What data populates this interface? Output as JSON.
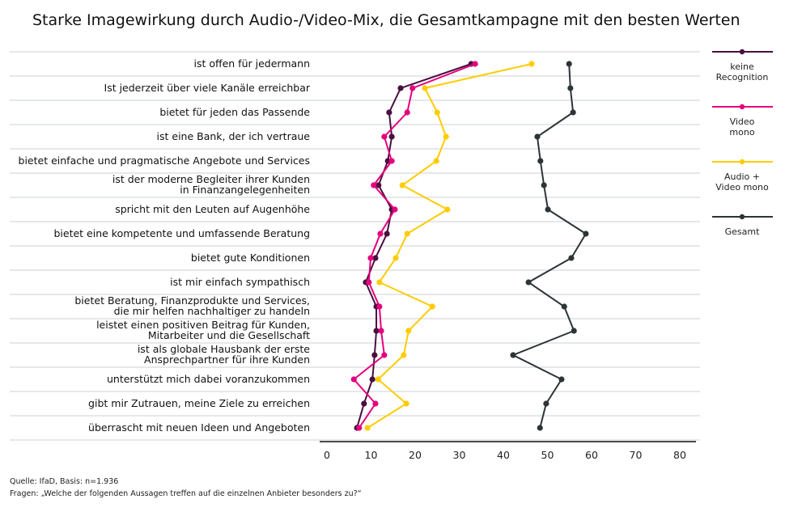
{
  "chart_data": {
    "type": "line",
    "orientation": "horizontal",
    "title": "Starke Imagewirkung durch Audio-/Video-Mix, die Gesamtkampagne mit den besten Werten",
    "categories": [
      [
        "ist offen für jedermann"
      ],
      [
        "Ist jederzeit über viele Kanäle erreichbar"
      ],
      [
        "bietet für jeden das Passende"
      ],
      [
        "ist eine Bank, der ich vertraue"
      ],
      [
        "bietet einfache und pragmatische Angebote und Services"
      ],
      [
        "ist der moderne Begleiter ihrer Kunden",
        "in Finanzangelegenheiten"
      ],
      [
        "spricht mit den Leuten auf Augenhöhe"
      ],
      [
        "bietet eine kompetente und umfassende Beratung"
      ],
      [
        "bietet gute Konditionen"
      ],
      [
        "ist mir einfach sympathisch"
      ],
      [
        "bietet Beratung, Finanzprodukte und Services,",
        "die mir helfen nachhaltiger zu handeln"
      ],
      [
        "leistet einen positiven Beitrag für Kunden,",
        "Mitarbeiter und die Gesellschaft"
      ],
      [
        "ist als globale Hausbank der erste",
        "Ansprechpartner für ihre Kunden"
      ],
      [
        "unterstützt mich dabei voranzukommen"
      ],
      [
        "gibt mir Zutrauen, meine Ziele zu erreichen"
      ],
      [
        "überrascht mit neuen Ideen und Angeboten"
      ]
    ],
    "series": [
      {
        "name": [
          "keine",
          "Recognition"
        ],
        "color": "#4a0f3f",
        "values": [
          32.7,
          16.7,
          14.1,
          14.7,
          13.8,
          11.7,
          14.7,
          13.6,
          11,
          8.8,
          11.2,
          11.2,
          10.8,
          10.3,
          8.4,
          6.8
        ]
      },
      {
        "name": [
          "Video",
          "mono"
        ],
        "color": "#e5007d",
        "values": [
          33.6,
          19.4,
          18.2,
          13,
          14.7,
          10.6,
          15.4,
          12.1,
          9.9,
          9.5,
          11.9,
          12.3,
          13,
          6.1,
          11,
          7.3
        ]
      },
      {
        "name": [
          "Audio +",
          "Video mono"
        ],
        "color": "#ffcc00",
        "values": [
          46.4,
          22.2,
          25,
          27,
          24.8,
          17.1,
          27.3,
          18.2,
          15.6,
          11.9,
          23.9,
          18.5,
          17.4,
          11.6,
          18,
          9.2
        ]
      },
      {
        "name": [
          "Gesamt"
        ],
        "color": "#2d3436",
        "values": [
          54.9,
          55.2,
          55.8,
          47.7,
          48.4,
          49.2,
          50.1,
          58.7,
          55.4,
          45.7,
          53.8,
          56,
          42.2,
          53.2,
          49.7,
          48.3
        ]
      }
    ],
    "xticks": [
      "0",
      "10",
      "20",
      "30",
      "40",
      "50",
      "60",
      "70",
      "80"
    ],
    "xlim": [
      0,
      80
    ],
    "grid": true,
    "legend": "right"
  },
  "footer": {
    "source": "Quelle: IfaD, Basis: n=1.936",
    "question": "Fragen: „Welche der folgenden Aussagen treffen auf die einzelnen Anbieter besonders zu?“"
  }
}
